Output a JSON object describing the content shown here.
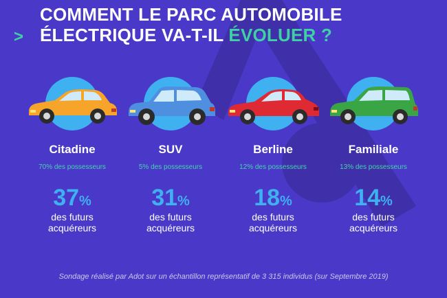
{
  "header": {
    "arrow": ">",
    "line1": "COMMENT LE PARC AUTOMOBILE",
    "line2_main": "ÉLECTRIQUE VA-T-IL ",
    "line2_accent": "ÉVOLUER ?"
  },
  "percent_symbol": "%",
  "columns": [
    {
      "category": "Citadine",
      "owners": "70% des possesseurs",
      "future_pct": "37",
      "future_line1": "des futurs",
      "future_line2": "acquéreurs",
      "car_color": "#f6a42a",
      "car_icon": "citadine-car-icon"
    },
    {
      "category": "SUV",
      "owners": "5% des possesseurs",
      "future_pct": "31",
      "future_line1": "des futurs",
      "future_line2": "acquéreurs",
      "car_color": "#4f8fe0",
      "car_icon": "suv-car-icon"
    },
    {
      "category": "Berline",
      "owners": "12% des possesseurs",
      "future_pct": "18",
      "future_line1": "des futurs",
      "future_line2": "acquéreurs",
      "car_color": "#e02a33",
      "car_icon": "berline-car-icon"
    },
    {
      "category": "Familiale",
      "owners": "13% des possesseurs",
      "future_pct": "14",
      "future_line1": "des futurs",
      "future_line2": "acquéreurs",
      "car_color": "#3aa545",
      "car_icon": "familiale-car-icon"
    }
  ],
  "footnote": "Sondage réalisé par Adot sur un échantillon représentatif de 3 315 individus (sur Septembre 2019)",
  "colors": {
    "background": "#4a39c8",
    "accent_green": "#3fd0a6",
    "accent_blue": "#3fb0f0",
    "logo_shape": "#3f2fa8"
  }
}
